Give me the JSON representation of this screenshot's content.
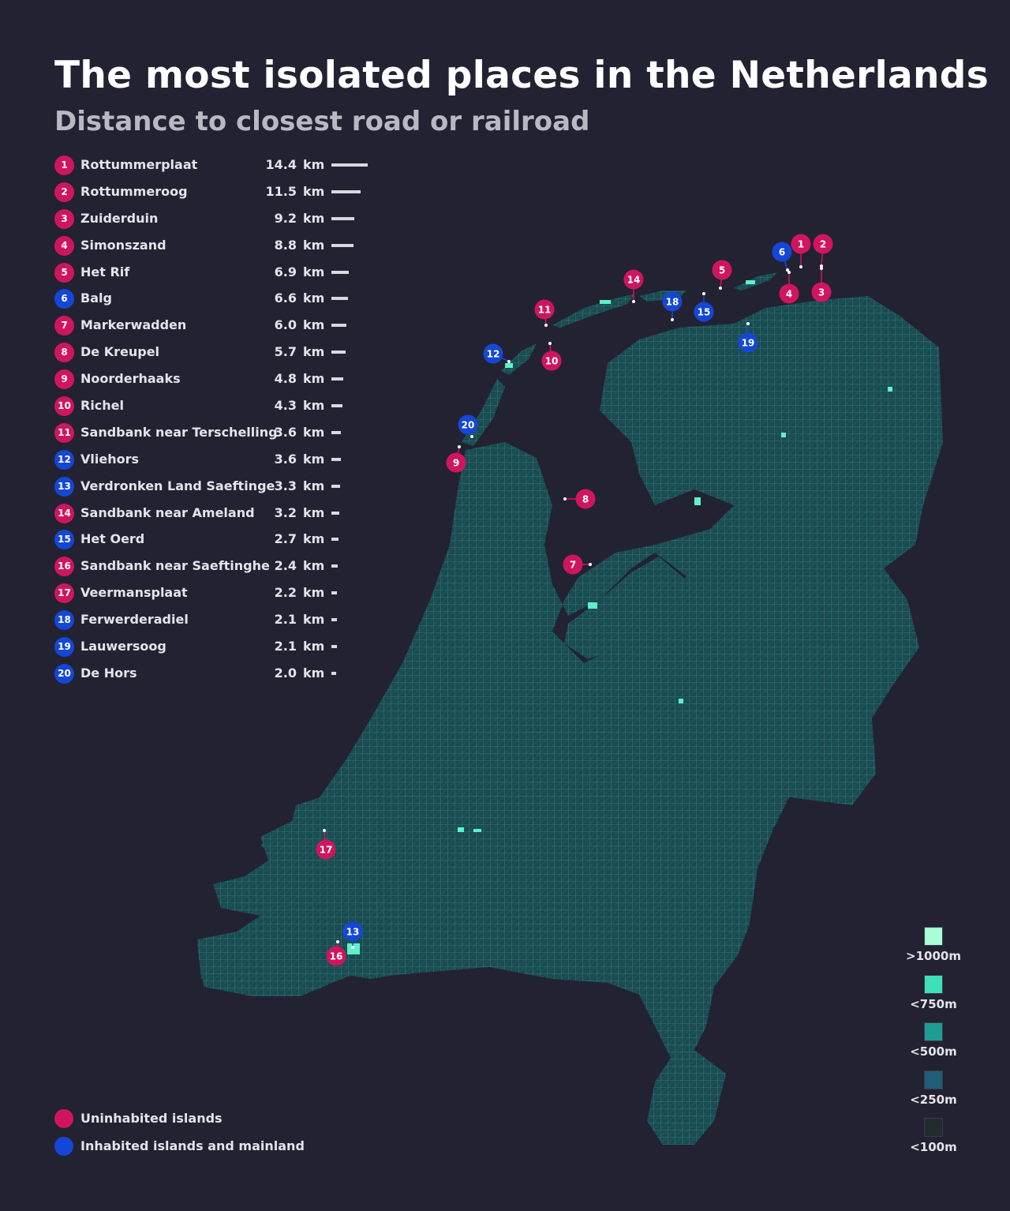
{
  "header": {
    "title": "The most isolated places in the Netherlands",
    "subtitle": "Distance to closest road or railroad"
  },
  "colors": {
    "background": "#232232",
    "uninhabited": "#d0155f",
    "inhabited": "#1547d6",
    "land": "#1f5b60"
  },
  "unit": "km",
  "places": [
    {
      "rank": "1",
      "name": "Rottummerplaat",
      "distance": "14.4",
      "distance_km": 14.4,
      "type": "uninhabited"
    },
    {
      "rank": "2",
      "name": "Rottummeroog",
      "distance": "11.5",
      "distance_km": 11.5,
      "type": "uninhabited"
    },
    {
      "rank": "3",
      "name": "Zuiderduin",
      "distance": "9.2",
      "distance_km": 9.2,
      "type": "uninhabited"
    },
    {
      "rank": "4",
      "name": "Simonszand",
      "distance": "8.8",
      "distance_km": 8.8,
      "type": "uninhabited"
    },
    {
      "rank": "5",
      "name": "Het Rif",
      "distance": "6.9",
      "distance_km": 6.9,
      "type": "uninhabited"
    },
    {
      "rank": "6",
      "name": "Balg",
      "distance": "6.6",
      "distance_km": 6.6,
      "type": "inhabited"
    },
    {
      "rank": "7",
      "name": "Markerwadden",
      "distance": "6.0",
      "distance_km": 6.0,
      "type": "uninhabited"
    },
    {
      "rank": "8",
      "name": "De Kreupel",
      "distance": "5.7",
      "distance_km": 5.7,
      "type": "uninhabited"
    },
    {
      "rank": "9",
      "name": "Noorderhaaks",
      "distance": "4.8",
      "distance_km": 4.8,
      "type": "uninhabited"
    },
    {
      "rank": "10",
      "name": "Richel",
      "distance": "4.3",
      "distance_km": 4.3,
      "type": "uninhabited"
    },
    {
      "rank": "11",
      "name": "Sandbank near Terschelling",
      "distance": "3.6",
      "distance_km": 3.6,
      "type": "uninhabited"
    },
    {
      "rank": "12",
      "name": "Vliehors",
      "distance": "3.6",
      "distance_km": 3.6,
      "type": "inhabited"
    },
    {
      "rank": "13",
      "name": "Verdronken Land Saeftinge",
      "distance": "3.3",
      "distance_km": 3.3,
      "type": "inhabited"
    },
    {
      "rank": "14",
      "name": "Sandbank near Ameland",
      "distance": "3.2",
      "distance_km": 3.2,
      "type": "uninhabited"
    },
    {
      "rank": "15",
      "name": "Het Oerd",
      "distance": "2.7",
      "distance_km": 2.7,
      "type": "inhabited"
    },
    {
      "rank": "16",
      "name": "Sandbank near Saeftinghe",
      "distance": "2.4",
      "distance_km": 2.4,
      "type": "uninhabited"
    },
    {
      "rank": "17",
      "name": "Veermansplaat",
      "distance": "2.2",
      "distance_km": 2.2,
      "type": "uninhabited"
    },
    {
      "rank": "18",
      "name": "Ferwerderadiel",
      "distance": "2.1",
      "distance_km": 2.1,
      "type": "inhabited"
    },
    {
      "rank": "19",
      "name": "Lauwersoog",
      "distance": "2.1",
      "distance_km": 2.1,
      "type": "inhabited"
    },
    {
      "rank": "20",
      "name": "De Hors",
      "distance": "2.0",
      "distance_km": 2.0,
      "type": "inhabited"
    }
  ],
  "type_legend": [
    {
      "label": "Uninhabited islands",
      "color": "#d0155f"
    },
    {
      "label": "Inhabited islands and mainland",
      "color": "#1547d6"
    }
  ],
  "scale_legend": [
    {
      "label": ">1000m",
      "color": "#a8ffd6"
    },
    {
      "label": "<750m",
      "color": "#3ee0b8"
    },
    {
      "label": "<500m",
      "color": "#1f9d93"
    },
    {
      "label": "<250m",
      "color": "#1f5d78"
    },
    {
      "label": "<100m",
      "color": "#232b30"
    }
  ]
}
